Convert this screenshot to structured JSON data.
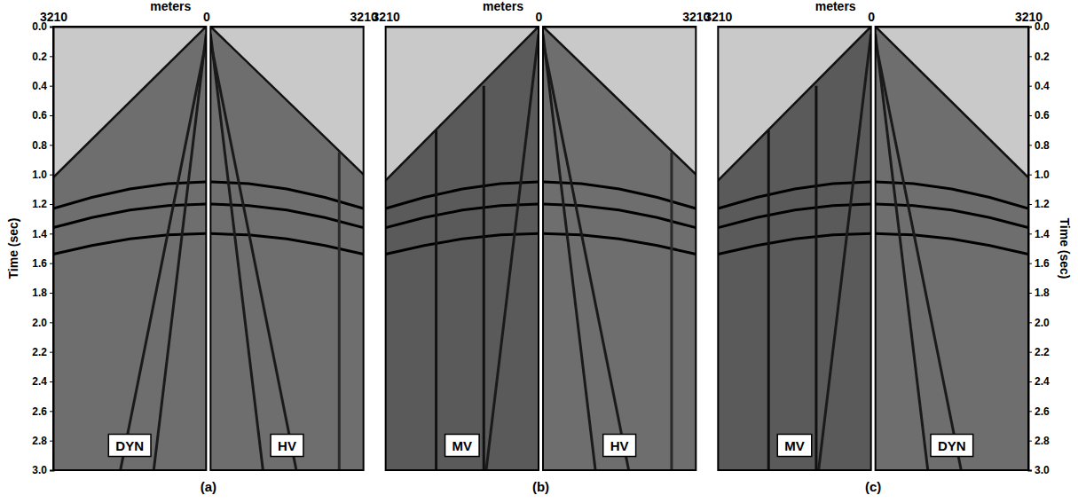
{
  "chart_data": [
    {
      "type": "line",
      "title": "DYN",
      "x_label": "meters",
      "y_label": "Time (sec)",
      "caption": "(a)",
      "xlim": [
        3210,
        0
      ],
      "xticks": [
        3210,
        0
      ],
      "ylim": [
        0,
        3
      ],
      "yticks": [
        {
          "value": 0,
          "label": "0.0"
        },
        0.2,
        0.4,
        0.6,
        0.8,
        {
          "value": 1,
          "label": "1.0"
        },
        1.2,
        1.4,
        1.6,
        1.8,
        {
          "value": 2,
          "label": "2.0"
        },
        2.2,
        2.4,
        2.6,
        2.8,
        {
          "value": 3,
          "label": "3.0"
        }
      ],
      "series": [
        {
          "type": "area",
          "color": "#6e6e6e",
          "x": [
            0,
            3210
          ],
          "values": [
            0.0,
            1.02
          ]
        },
        {
          "type": "line",
          "color": "#000000",
          "x": [
            0,
            800,
            1600,
            2400,
            3210
          ],
          "values": [
            1.05,
            1.062,
            1.098,
            1.155,
            1.23
          ]
        },
        {
          "type": "line",
          "color": "#000000",
          "x": [
            0,
            800,
            1600,
            2400,
            3210
          ],
          "values": [
            1.2,
            1.211,
            1.241,
            1.292,
            1.36
          ]
        },
        {
          "type": "line",
          "color": "#000000",
          "x": [
            0,
            800,
            1600,
            2400,
            3210
          ],
          "values": [
            1.4,
            1.409,
            1.436,
            1.48,
            1.539
          ]
        },
        {
          "type": "line",
          "color": "#1a1a1a",
          "x": [
            0,
            1100
          ],
          "values": [
            0.05,
            3.0
          ]
        },
        {
          "type": "line",
          "color": "#1a1a1a",
          "x": [
            0,
            1800
          ],
          "values": [
            0.1,
            3.0
          ]
        }
      ]
    },
    {
      "type": "line",
      "title": "HV",
      "xlim": [
        0,
        3210
      ],
      "xticks": [
        3210
      ],
      "ylim": [
        0,
        3
      ],
      "series": [
        {
          "type": "area",
          "color": "#6e6e6e",
          "x": [
            0,
            3210
          ],
          "values": [
            0.0,
            1.0
          ]
        },
        {
          "type": "line",
          "color": "#000000",
          "x": [
            0,
            800,
            1600,
            2400,
            3210
          ],
          "values": [
            1.05,
            1.062,
            1.098,
            1.155,
            1.23
          ]
        },
        {
          "type": "line",
          "color": "#000000",
          "x": [
            0,
            800,
            1600,
            2400,
            3210
          ],
          "values": [
            1.2,
            1.211,
            1.241,
            1.292,
            1.36
          ]
        },
        {
          "type": "line",
          "color": "#000000",
          "x": [
            0,
            800,
            1600,
            2400,
            3210
          ],
          "values": [
            1.4,
            1.409,
            1.436,
            1.48,
            1.539
          ]
        },
        {
          "type": "line",
          "color": "#1a1a1a",
          "x": [
            0,
            1100
          ],
          "values": [
            0.05,
            3.0
          ]
        },
        {
          "type": "line",
          "color": "#1a1a1a",
          "x": [
            0,
            1800
          ],
          "values": [
            0.1,
            3.0
          ]
        },
        {
          "type": "line",
          "color": "#2a2a2a",
          "x": [
            2700,
            2700
          ],
          "values": [
            0.85,
            3.0
          ]
        }
      ]
    },
    {
      "type": "line",
      "title": "MV",
      "x_label": "meters",
      "caption": "(b)",
      "xlim": [
        3210,
        0
      ],
      "xticks": [
        3210,
        0
      ],
      "ylim": [
        0,
        3
      ],
      "series": [
        {
          "type": "area",
          "color": "#5a5a5a",
          "x": [
            0,
            3210
          ],
          "values": [
            0.0,
            1.04
          ]
        },
        {
          "type": "line",
          "color": "#000000",
          "x": [
            0,
            800,
            1600,
            2400,
            3210
          ],
          "values": [
            1.05,
            1.062,
            1.098,
            1.155,
            1.23
          ]
        },
        {
          "type": "line",
          "color": "#000000",
          "x": [
            0,
            800,
            1600,
            2400,
            3210
          ],
          "values": [
            1.2,
            1.211,
            1.241,
            1.292,
            1.36
          ]
        },
        {
          "type": "line",
          "color": "#000000",
          "x": [
            0,
            800,
            1600,
            2400,
            3210
          ],
          "values": [
            1.4,
            1.409,
            1.436,
            1.48,
            1.539
          ]
        },
        {
          "type": "line",
          "color": "#1a1a1a",
          "x": [
            0,
            1100
          ],
          "values": [
            0.05,
            3.0
          ]
        },
        {
          "type": "line",
          "color": "#111111",
          "x": [
            2150,
            2150
          ],
          "values": [
            0.7,
            3.0
          ]
        },
        {
          "type": "line",
          "color": "#111111",
          "x": [
            1150,
            1150
          ],
          "values": [
            0.4,
            3.0
          ]
        }
      ]
    },
    {
      "type": "line",
      "title": "HV",
      "xlim": [
        0,
        3210
      ],
      "xticks": [
        3210
      ],
      "ylim": [
        0,
        3
      ],
      "series": [
        {
          "type": "area",
          "color": "#6e6e6e",
          "x": [
            0,
            3210
          ],
          "values": [
            0.0,
            1.0
          ]
        },
        {
          "type": "line",
          "color": "#000000",
          "x": [
            0,
            800,
            1600,
            2400,
            3210
          ],
          "values": [
            1.05,
            1.062,
            1.098,
            1.155,
            1.23
          ]
        },
        {
          "type": "line",
          "color": "#000000",
          "x": [
            0,
            800,
            1600,
            2400,
            3210
          ],
          "values": [
            1.2,
            1.211,
            1.241,
            1.292,
            1.36
          ]
        },
        {
          "type": "line",
          "color": "#000000",
          "x": [
            0,
            800,
            1600,
            2400,
            3210
          ],
          "values": [
            1.4,
            1.409,
            1.436,
            1.48,
            1.539
          ]
        },
        {
          "type": "line",
          "color": "#1a1a1a",
          "x": [
            0,
            1100
          ],
          "values": [
            0.05,
            3.0
          ]
        },
        {
          "type": "line",
          "color": "#1a1a1a",
          "x": [
            0,
            1800
          ],
          "values": [
            0.1,
            3.0
          ]
        },
        {
          "type": "line",
          "color": "#2a2a2a",
          "x": [
            2700,
            2700
          ],
          "values": [
            0.85,
            3.0
          ]
        }
      ]
    },
    {
      "type": "line",
      "title": "MV",
      "x_label": "meters",
      "caption": "(c)",
      "xlim": [
        3210,
        0
      ],
      "xticks": [
        3210,
        0
      ],
      "ylim": [
        0,
        3
      ],
      "series": [
        {
          "type": "area",
          "color": "#5a5a5a",
          "x": [
            0,
            3210
          ],
          "values": [
            0.0,
            1.04
          ]
        },
        {
          "type": "line",
          "color": "#000000",
          "x": [
            0,
            800,
            1600,
            2400,
            3210
          ],
          "values": [
            1.05,
            1.062,
            1.098,
            1.155,
            1.23
          ]
        },
        {
          "type": "line",
          "color": "#000000",
          "x": [
            0,
            800,
            1600,
            2400,
            3210
          ],
          "values": [
            1.2,
            1.211,
            1.241,
            1.292,
            1.36
          ]
        },
        {
          "type": "line",
          "color": "#000000",
          "x": [
            0,
            800,
            1600,
            2400,
            3210
          ],
          "values": [
            1.4,
            1.409,
            1.436,
            1.48,
            1.539
          ]
        },
        {
          "type": "line",
          "color": "#1a1a1a",
          "x": [
            0,
            1100
          ],
          "values": [
            0.05,
            3.0
          ]
        },
        {
          "type": "line",
          "color": "#111111",
          "x": [
            2150,
            2150
          ],
          "values": [
            0.7,
            3.0
          ]
        },
        {
          "type": "line",
          "color": "#111111",
          "x": [
            1150,
            1150
          ],
          "values": [
            0.4,
            3.0
          ]
        }
      ]
    },
    {
      "type": "line",
      "title": "DYN",
      "y_label": "Time (sec)",
      "xlim": [
        0,
        3210
      ],
      "xticks": [
        3210
      ],
      "ylim": [
        0,
        3
      ],
      "yticks": [
        {
          "value": 0,
          "label": "0.0"
        },
        0.2,
        0.4,
        0.6,
        0.8,
        {
          "value": 1,
          "label": "1.0"
        },
        1.2,
        1.4,
        1.6,
        1.8,
        {
          "value": 2,
          "label": "2.0"
        },
        2.2,
        2.4,
        2.6,
        2.8,
        {
          "value": 3,
          "label": "3.0"
        }
      ],
      "series": [
        {
          "type": "area",
          "color": "#6e6e6e",
          "x": [
            0,
            3210
          ],
          "values": [
            0.0,
            1.02
          ]
        },
        {
          "type": "line",
          "color": "#000000",
          "x": [
            0,
            800,
            1600,
            2400,
            3210
          ],
          "values": [
            1.05,
            1.062,
            1.098,
            1.155,
            1.23
          ]
        },
        {
          "type": "line",
          "color": "#000000",
          "x": [
            0,
            800,
            1600,
            2400,
            3210
          ],
          "values": [
            1.2,
            1.211,
            1.241,
            1.292,
            1.36
          ]
        },
        {
          "type": "line",
          "color": "#000000",
          "x": [
            0,
            800,
            1600,
            2400,
            3210
          ],
          "values": [
            1.4,
            1.409,
            1.436,
            1.48,
            1.539
          ]
        },
        {
          "type": "line",
          "color": "#1a1a1a",
          "x": [
            0,
            1100
          ],
          "values": [
            0.05,
            3.0
          ]
        },
        {
          "type": "line",
          "color": "#1a1a1a",
          "x": [
            0,
            1800
          ],
          "values": [
            0.1,
            3.0
          ]
        }
      ]
    }
  ]
}
